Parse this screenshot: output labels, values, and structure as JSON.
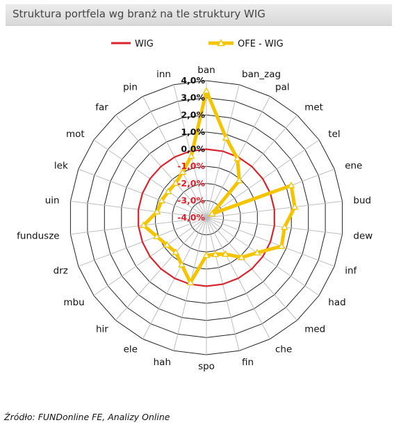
{
  "title": "Struktura portfela wg branż na tle struktury WIG",
  "source": "Źródło: FUNDonline FE, Analizy Online",
  "chart_data": {
    "type": "radar",
    "categories": [
      "ban",
      "ban_zag",
      "pal",
      "met",
      "tel",
      "ene",
      "bud",
      "dew",
      "inf",
      "had",
      "med",
      "che",
      "fin",
      "spo",
      "hah",
      "ele",
      "hir",
      "mbu",
      "drz",
      "fundusze",
      "uin",
      "lek",
      "mot",
      "far",
      "pin",
      "inn"
    ],
    "rlim": [
      -4,
      4
    ],
    "ticks": [
      -4,
      -3,
      -2,
      -1,
      0,
      1,
      2,
      3,
      4
    ],
    "tick_labels": [
      "-4,0%",
      "-3,0%",
      "-2,0%",
      "-1,0%",
      "0,0%",
      "1,0%",
      "2,0%",
      "3,0%",
      "4,0%"
    ],
    "legend_position": "top",
    "series": [
      {
        "name": "WIG",
        "color": "#d9232d",
        "values": [
          0,
          0,
          0,
          0,
          0,
          0,
          0,
          0,
          0,
          0,
          0,
          0,
          0,
          0,
          0,
          0,
          0,
          0,
          0,
          0,
          0,
          0,
          0,
          0,
          0,
          0
        ]
      },
      {
        "name": "OFE - WIG",
        "color": "#f5c400",
        "values": [
          3.4,
          0.8,
          -0.1,
          -1.1,
          -3.6,
          1.3,
          1.2,
          0.6,
          0.7,
          -0.4,
          -0.9,
          -1.6,
          -1.8,
          -1.8,
          -0.1,
          -0.9,
          -1.3,
          -1.2,
          -0.9,
          -0.3,
          -1.1,
          -1.2,
          -1.3,
          -1.3,
          -1.0,
          -0.3
        ]
      }
    ]
  }
}
